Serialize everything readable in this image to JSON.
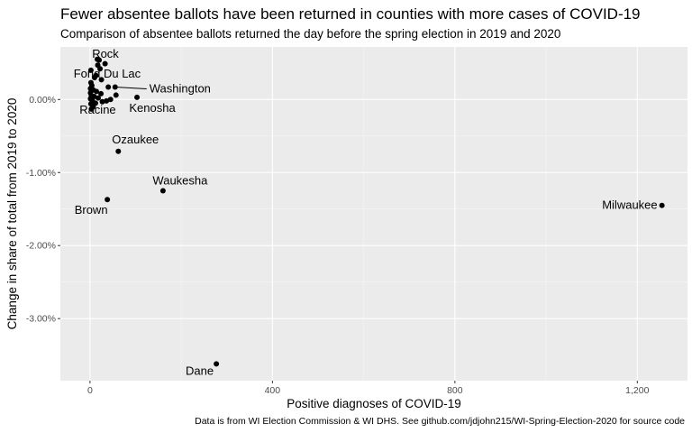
{
  "chart_data": {
    "type": "scatter",
    "title": "Fewer absentee ballots have been returned in counties with more cases of COVID-19",
    "subtitle": "Comparison of absentee ballots returned the day before the spring election in 2019 and 2020",
    "caption": "Data is from WI Election Commission & WI DHS. See github.com/jdjohn215/WI-Spring-Election-2020 for source code",
    "xlabel": "Positive diagnoses of COVID-19",
    "ylabel": "Change in share of total from 2019 to 2020",
    "xlim": [
      -65,
      1310
    ],
    "ylim": [
      -3.85,
      0.72
    ],
    "x_ticks": [
      0,
      400,
      800,
      1200
    ],
    "x_tick_labels": [
      "0",
      "400",
      "800",
      "1,200"
    ],
    "y_ticks": [
      0,
      -1,
      -2,
      -3
    ],
    "y_tick_labels": [
      "0.00%",
      "-1.00%",
      "-2.00%",
      "-3.00%"
    ],
    "grid": true,
    "points": [
      {
        "x": 1254,
        "y": -1.45,
        "label": "Milwaukee"
      },
      {
        "x": 277,
        "y": -3.62,
        "label": "Dane"
      },
      {
        "x": 160,
        "y": -1.25,
        "label": "Waukesha"
      },
      {
        "x": 62,
        "y": -0.71,
        "label": "Ozaukee"
      },
      {
        "x": 38,
        "y": -1.37,
        "label": "Brown"
      },
      {
        "x": 103,
        "y": 0.03,
        "label": "Kenosha"
      },
      {
        "x": 55,
        "y": 0.17,
        "label": "Washington"
      },
      {
        "x": 16,
        "y": 0.55,
        "label": "Rock"
      },
      {
        "x": 10,
        "y": 0.3,
        "label": "Fond Du Lac"
      },
      {
        "x": 5,
        "y": -0.07,
        "label": "Racine"
      },
      {
        "x": 20,
        "y": 0.54
      },
      {
        "x": 17,
        "y": 0.47
      },
      {
        "x": 33,
        "y": 0.49
      },
      {
        "x": 22,
        "y": 0.42
      },
      {
        "x": 2,
        "y": 0.4
      },
      {
        "x": 13,
        "y": 0.33
      },
      {
        "x": 25,
        "y": 0.27
      },
      {
        "x": 2,
        "y": 0.23
      },
      {
        "x": 4,
        "y": 0.19
      },
      {
        "x": 40,
        "y": 0.17
      },
      {
        "x": 1,
        "y": 0.15
      },
      {
        "x": 7,
        "y": 0.13
      },
      {
        "x": 14,
        "y": 0.11
      },
      {
        "x": 1,
        "y": 0.09
      },
      {
        "x": 24,
        "y": 0.08
      },
      {
        "x": 57,
        "y": 0.06
      },
      {
        "x": 3,
        "y": 0.05
      },
      {
        "x": 9,
        "y": 0.04
      },
      {
        "x": 18,
        "y": 0.02
      },
      {
        "x": 1,
        "y": 0.01
      },
      {
        "x": 5,
        "y": -0.01
      },
      {
        "x": 27,
        "y": -0.03
      },
      {
        "x": 12,
        "y": -0.05
      },
      {
        "x": 2,
        "y": -0.06
      },
      {
        "x": 7,
        "y": -0.1
      },
      {
        "x": 3,
        "y": -0.13
      },
      {
        "x": 36,
        "y": -0.02
      },
      {
        "x": 45,
        "y": 0.0
      }
    ]
  }
}
